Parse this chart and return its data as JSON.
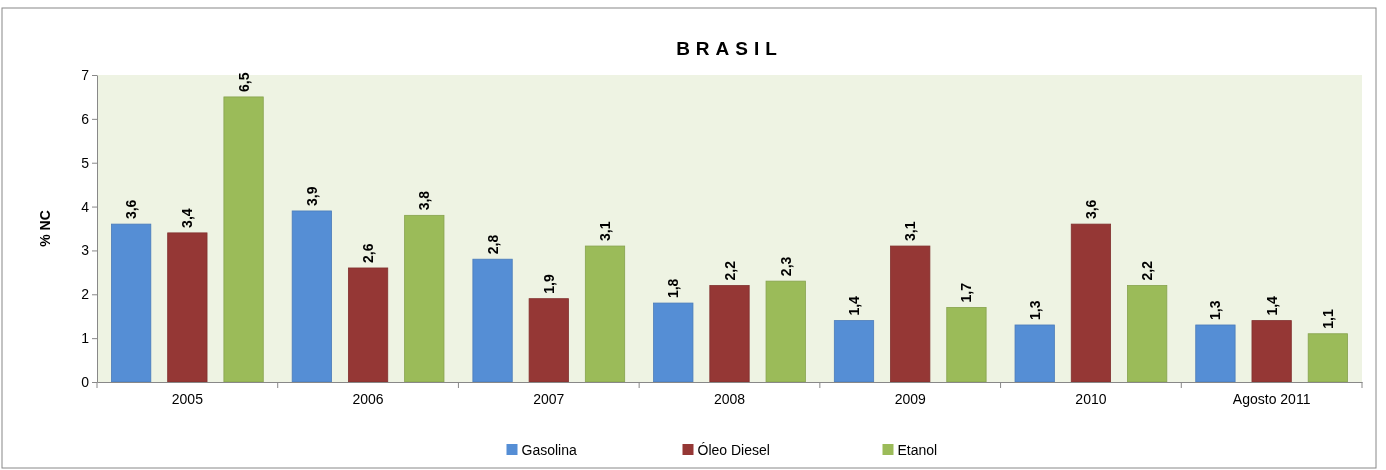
{
  "chart_data": {
    "type": "bar",
    "title": "BRASIL",
    "ylabel": "% NC",
    "categories": [
      "2005",
      "2006",
      "2007",
      "2008",
      "2009",
      "2010",
      "Agosto 2011"
    ],
    "series": [
      {
        "name": "Gasolina",
        "color": "#558ed5",
        "values": [
          3.6,
          3.9,
          2.8,
          1.8,
          1.4,
          1.3,
          1.3
        ],
        "value_labels": [
          "3,6",
          "3,9",
          "2,8",
          "1,8",
          "1,4",
          "1,3",
          "1,3"
        ]
      },
      {
        "name": "Óleo Diesel",
        "color": "#953735",
        "values": [
          3.4,
          2.6,
          1.9,
          2.2,
          3.1,
          3.6,
          1.4
        ],
        "value_labels": [
          "3,4",
          "2,6",
          "1,9",
          "2,2",
          "3,1",
          "3,6",
          "1,4"
        ]
      },
      {
        "name": "Etanol",
        "color": "#9bbb59",
        "values": [
          6.5,
          3.8,
          3.1,
          2.3,
          1.7,
          2.2,
          1.1
        ],
        "value_labels": [
          "6,5",
          "3,8",
          "3,1",
          "2,3",
          "1,7",
          "2,2",
          "1,1"
        ]
      }
    ],
    "ylim": [
      0,
      7
    ],
    "yticks": [
      0,
      1,
      2,
      3,
      4,
      5,
      6,
      7
    ],
    "grid": false,
    "legend": "bottom"
  }
}
